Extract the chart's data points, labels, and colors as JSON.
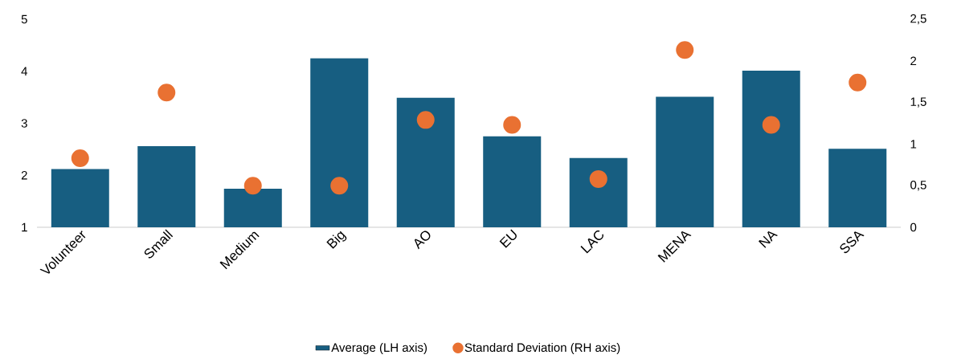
{
  "chart_data": {
    "type": "bar",
    "categories": [
      "Volunteer",
      "Small",
      "Medium",
      "Big",
      "AO",
      "EU",
      "LAC",
      "MENA",
      "NA",
      "SSA"
    ],
    "series": [
      {
        "name": "Average (LH axis)",
        "color": "#175e81",
        "values": [
          2.12,
          2.56,
          1.74,
          4.25,
          3.49,
          2.75,
          2.33,
          3.51,
          4.01,
          2.51
        ]
      },
      {
        "name": "Standard Deviation (RH axis)",
        "type": "scatter",
        "axis": "y2",
        "marker": "circle",
        "color": "#e97132",
        "values": [
          0.83,
          1.62,
          0.5,
          0.5,
          1.29,
          1.23,
          0.58,
          2.13,
          1.23,
          1.74
        ]
      }
    ],
    "ylim": [
      1,
      5
    ],
    "yticks": [
      1,
      2,
      3,
      4,
      5
    ],
    "y2lim": [
      0,
      2.5
    ],
    "y2ticks": [
      0,
      {
        "value": 0.5,
        "label": "0,5"
      },
      1,
      {
        "value": 1.5,
        "label": "1,5"
      },
      2,
      {
        "value": 2.5,
        "label": "2,5"
      }
    ],
    "legend": "bottom",
    "grid": false
  }
}
